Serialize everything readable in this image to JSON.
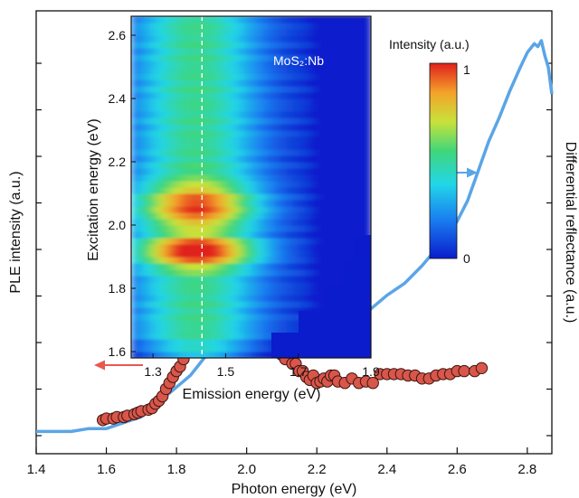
{
  "chart_data": [
    {
      "type": "line",
      "xlabel": "Photon energy (eV)",
      "ylabel_left": "PLE intensity (a.u.)",
      "ylabel_right": "Differential reflectance (a.u.)",
      "xlim": [
        1.4,
        2.87
      ],
      "xticks": [
        "1.4",
        "1.6",
        "1.8",
        "2.0",
        "2.2",
        "2.4",
        "2.6",
        "2.8"
      ],
      "left_arrow_color": "#e8584f",
      "right_arrow_color": "#5aa5e6",
      "series": [
        {
          "role": "ple-scatter",
          "axis": "left",
          "marker_color": "#d9564a",
          "x": [
            1.59,
            1.6,
            1.62,
            1.63,
            1.65,
            1.66,
            1.68,
            1.69,
            1.7,
            1.72,
            1.73,
            1.74,
            1.75,
            1.76,
            1.77,
            1.78,
            1.79,
            1.8,
            1.81,
            1.82,
            1.83,
            1.84,
            1.86,
            1.87,
            1.88,
            1.89,
            1.9,
            1.91,
            1.92,
            1.93,
            1.94,
            1.95,
            1.96,
            1.97,
            1.99,
            2.0,
            2.01,
            2.02,
            2.03,
            2.04,
            2.05,
            2.06,
            2.07,
            2.08,
            2.09,
            2.1,
            2.11,
            2.13,
            2.14,
            2.15,
            2.16,
            2.17,
            2.18,
            2.19,
            2.2,
            2.21,
            2.22,
            2.23,
            2.24,
            2.25,
            2.26,
            2.28,
            2.3,
            2.32,
            2.34,
            2.36,
            2.38,
            2.4,
            2.42,
            2.44,
            2.46,
            2.48,
            2.5,
            2.52,
            2.54,
            2.56,
            2.58,
            2.6,
            2.62,
            2.65,
            2.67
          ],
          "y": [
            0.05,
            0.06,
            0.06,
            0.07,
            0.07,
            0.08,
            0.09,
            0.1,
            0.11,
            0.12,
            0.13,
            0.16,
            0.18,
            0.21,
            0.26,
            0.3,
            0.34,
            0.38,
            0.41,
            0.46,
            0.51,
            0.54,
            0.57,
            0.6,
            0.63,
            0.7,
            0.68,
            0.62,
            0.67,
            0.66,
            0.62,
            0.63,
            0.6,
            0.55,
            0.56,
            0.58,
            0.56,
            0.59,
            0.55,
            0.56,
            0.57,
            0.54,
            0.51,
            0.53,
            0.55,
            0.49,
            0.46,
            0.43,
            0.43,
            0.38,
            0.38,
            0.34,
            0.32,
            0.35,
            0.3,
            0.31,
            0.33,
            0.31,
            0.35,
            0.35,
            0.31,
            0.3,
            0.33,
            0.3,
            0.31,
            0.3,
            0.36,
            0.36,
            0.36,
            0.36,
            0.35,
            0.35,
            0.33,
            0.33,
            0.35,
            0.36,
            0.36,
            0.38,
            0.38,
            0.38,
            0.4
          ]
        },
        {
          "role": "reflectance-line",
          "axis": "right",
          "color": "#5aa5e6",
          "x": [
            1.4,
            1.45,
            1.5,
            1.55,
            1.6,
            1.65,
            1.7,
            1.72,
            1.74,
            1.76,
            1.78,
            1.8,
            1.82,
            1.84,
            1.86,
            1.88,
            1.9,
            1.92,
            1.94,
            1.96,
            1.98,
            2.0,
            2.02,
            2.04,
            2.06,
            2.08,
            2.1,
            2.12,
            2.14,
            2.16,
            2.18,
            2.2,
            2.22,
            2.24,
            2.26,
            2.28,
            2.3,
            2.35,
            2.4,
            2.45,
            2.5,
            2.55,
            2.6,
            2.63,
            2.66,
            2.69,
            2.72,
            2.75,
            2.78,
            2.8,
            2.82,
            2.83,
            2.84,
            2.85,
            2.86,
            2.87
          ],
          "y": [
            0.02,
            0.02,
            0.02,
            0.03,
            0.03,
            0.05,
            0.07,
            0.09,
            0.11,
            0.13,
            0.15,
            0.17,
            0.19,
            0.21,
            0.24,
            0.27,
            0.3,
            0.31,
            0.31,
            0.32,
            0.33,
            0.36,
            0.39,
            0.41,
            0.41,
            0.38,
            0.35,
            0.33,
            0.31,
            0.3,
            0.3,
            0.31,
            0.32,
            0.34,
            0.35,
            0.37,
            0.39,
            0.43,
            0.48,
            0.52,
            0.58,
            0.65,
            0.73,
            0.8,
            0.9,
            1.0,
            1.08,
            1.17,
            1.25,
            1.3,
            1.33,
            1.32,
            1.34,
            1.29,
            1.25,
            1.16
          ]
        }
      ]
    },
    {
      "type": "heatmap",
      "title": "MoS₂:Nb",
      "xlabel": "Emission energy (eV)",
      "ylabel": "Excitation energy (eV)",
      "xlim": [
        1.24,
        1.9
      ],
      "ylim": [
        1.58,
        2.66
      ],
      "xticks": [
        "1.3",
        "1.5",
        "1.7",
        "1.9"
      ],
      "yticks": [
        "1.6",
        "1.8",
        "2.0",
        "2.2",
        "2.4",
        "2.6"
      ],
      "colorbar_label": "Intensity (a.u.)",
      "colorbar_max": "1",
      "colorbar_min": "0",
      "marker_line_x": 1.435,
      "peak_emission": 1.42,
      "peaks_excitation": [
        1.92,
        2.06
      ]
    }
  ]
}
